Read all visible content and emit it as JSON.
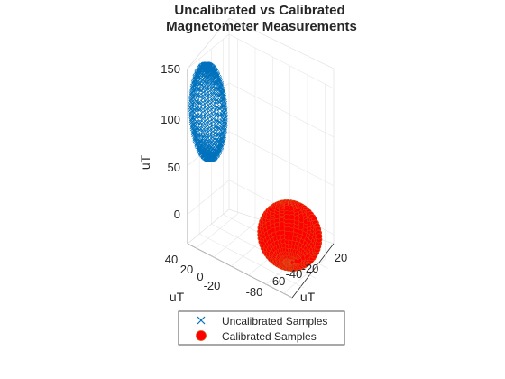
{
  "chart_data": {
    "type": "scatter",
    "plot3d": true,
    "title": "Uncalibrated vs Calibrated",
    "subtitle": "Magnetometer Measurements",
    "xlabel": "uT",
    "ylabel": "uT",
    "zlabel": "uT",
    "xlim": [
      -90,
      30
    ],
    "ylim": [
      -30,
      40
    ],
    "zlim": [
      -30,
      150
    ],
    "x_ticks": [
      "-80",
      "-60",
      "-40",
      "-20",
      "20"
    ],
    "y_ticks": [
      "40",
      "20",
      "0",
      "-20"
    ],
    "z_ticks": [
      "150",
      "100",
      "50",
      "0"
    ],
    "grid": true,
    "legend_position": "bottom",
    "series": [
      {
        "name": "Uncalibrated Samples",
        "marker": "x",
        "color": "#0072BD",
        "shape": "ellipsoid",
        "center": [
          -80,
          20,
          100
        ],
        "radii": [
          18,
          12,
          48
        ]
      },
      {
        "name": "Calibrated Samples",
        "marker": "filled-circle",
        "color": "#FF0000",
        "edge_color": "#D95319",
        "shape": "sphere",
        "center": [
          0,
          0,
          0
        ],
        "radii": [
          28,
          28,
          28
        ]
      }
    ]
  }
}
